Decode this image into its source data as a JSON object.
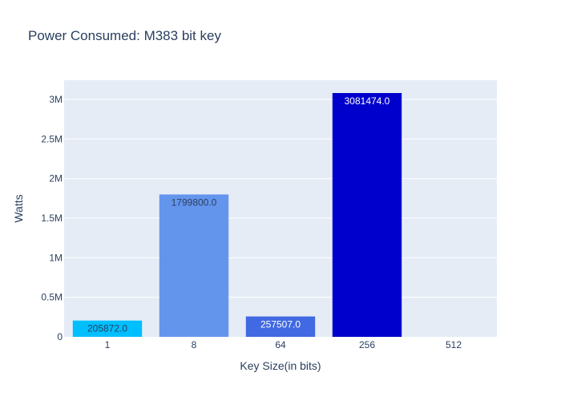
{
  "chart_data": {
    "type": "bar",
    "title": "Power Consumed: M383 bit key",
    "xlabel": "Key Size(in bits)",
    "ylabel": "Watts",
    "categories": [
      "1",
      "8",
      "64",
      "256",
      "512"
    ],
    "values": [
      205872.0,
      1799800.0,
      257507.0,
      3081474.0,
      0
    ],
    "data_labels": [
      "205872.0",
      "1799800.0",
      "257507.0",
      "3081474.0",
      ""
    ],
    "colors": [
      "#00bfff",
      "#6495ed",
      "#4169e1",
      "#0000cd",
      "#00008b"
    ],
    "label_colors": [
      "#2a3f5f",
      "#2a3f5f",
      "#ffffff",
      "#ffffff",
      "#ffffff"
    ],
    "ylim": [
      0,
      3243657
    ],
    "yticks": [
      {
        "value": 0,
        "label": "0"
      },
      {
        "value": 500000,
        "label": "0.5M"
      },
      {
        "value": 1000000,
        "label": "1M"
      },
      {
        "value": 1500000,
        "label": "1.5M"
      },
      {
        "value": 2000000,
        "label": "2M"
      },
      {
        "value": 2500000,
        "label": "2.5M"
      },
      {
        "value": 3000000,
        "label": "3M"
      }
    ],
    "grid": true,
    "plot_background": "#e5ecf6"
  }
}
